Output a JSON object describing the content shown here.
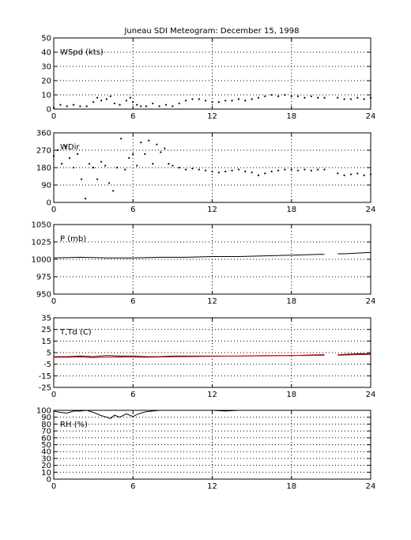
{
  "figure": {
    "title": "Juneau SDI Meteogram:  December 15, 1998"
  },
  "chart_data": [
    {
      "type": "scatter",
      "title": "",
      "xlabel": "",
      "ylabel": "WSpd (kts)",
      "xlim": [
        0,
        24
      ],
      "ylim": [
        0,
        50
      ],
      "xticks": [
        0,
        6,
        12,
        18,
        24
      ],
      "yticks": [
        0,
        10,
        20,
        30,
        40,
        50
      ],
      "grid": true,
      "gaps": [
        [
          20.6,
          21.3
        ]
      ],
      "series": [
        {
          "color": "#000000",
          "x": [
            0,
            0.5,
            1,
            1.5,
            2,
            2.5,
            3,
            3.3,
            3.6,
            4,
            4.3,
            4.6,
            5,
            5.5,
            5.8,
            6,
            6.3,
            6.6,
            7,
            7.5,
            8,
            8.5,
            9,
            9.5,
            10,
            10.5,
            11,
            11.5,
            12,
            12.5,
            13,
            13.5,
            14,
            14.5,
            15,
            15.5,
            16,
            16.5,
            17,
            17.5,
            18,
            18.5,
            19,
            19.5,
            20,
            20.5,
            21.5,
            22,
            22.5,
            23,
            23.5,
            24
          ],
          "y": [
            1,
            3,
            2,
            3,
            2,
            2,
            5,
            8,
            6,
            7,
            9,
            4,
            3,
            6,
            8,
            5,
            3,
            2,
            2,
            4,
            2,
            3,
            2,
            4,
            6,
            7,
            7,
            6,
            5,
            5,
            6,
            6,
            7,
            6,
            7,
            8,
            9,
            10,
            9,
            10,
            9,
            9,
            8,
            9,
            8,
            8,
            8,
            7,
            7,
            8,
            7,
            8
          ]
        }
      ]
    },
    {
      "type": "scatter",
      "title": "",
      "xlabel": "",
      "ylabel": "WDir",
      "xlim": [
        0,
        24
      ],
      "ylim": [
        0,
        360
      ],
      "xticks": [
        0,
        6,
        12,
        18,
        24
      ],
      "yticks": [
        0,
        90,
        180,
        270,
        360
      ],
      "grid": true,
      "gaps": [
        [
          20.6,
          21.3
        ]
      ],
      "series": [
        {
          "color": "#000000",
          "x": [
            0,
            0.3,
            0.6,
            0.9,
            1.2,
            1.5,
            1.8,
            2.1,
            2.4,
            2.7,
            3,
            3.3,
            3.6,
            3.9,
            4.2,
            4.5,
            4.8,
            5.1,
            5.4,
            5.7,
            6,
            6.3,
            6.6,
            6.9,
            7.2,
            7.5,
            7.8,
            8.1,
            8.4,
            8.7,
            9,
            9.5,
            10,
            10.5,
            11,
            11.5,
            12,
            12.5,
            13,
            13.5,
            14,
            14.5,
            15,
            15.5,
            16,
            16.5,
            17,
            17.5,
            18,
            18.5,
            19,
            19.5,
            20,
            20.5,
            21.5,
            22,
            22.5,
            23,
            23.5,
            24
          ],
          "y": [
            240,
            270,
            200,
            290,
            230,
            180,
            250,
            120,
            20,
            200,
            180,
            120,
            210,
            190,
            100,
            60,
            180,
            330,
            170,
            230,
            250,
            190,
            310,
            250,
            320,
            200,
            300,
            260,
            280,
            200,
            190,
            180,
            170,
            175,
            170,
            165,
            160,
            155,
            160,
            165,
            170,
            160,
            155,
            140,
            150,
            160,
            165,
            170,
            170,
            165,
            170,
            165,
            170,
            170,
            150,
            140,
            145,
            150,
            140,
            145
          ]
        }
      ]
    },
    {
      "type": "line",
      "title": "",
      "xlabel": "",
      "ylabel": "P (mb)",
      "xlim": [
        0,
        24
      ],
      "ylim": [
        950,
        1050
      ],
      "xticks": [
        0,
        6,
        12,
        18,
        24
      ],
      "yticks": [
        950,
        975,
        1000,
        1025,
        1050
      ],
      "grid": true,
      "gaps": [
        [
          20.6,
          21.3
        ]
      ],
      "series": [
        {
          "color": "#000000",
          "x": [
            0,
            2,
            4,
            6,
            8,
            10,
            12,
            14,
            16,
            18,
            20,
            20.5,
            21.5,
            22,
            23,
            24
          ],
          "y": [
            1002,
            1003,
            1002,
            1002,
            1003,
            1003,
            1004,
            1004,
            1005,
            1006,
            1007,
            1007,
            1008,
            1008,
            1009,
            1010
          ]
        }
      ]
    },
    {
      "type": "line",
      "title": "",
      "xlabel": "",
      "ylabel": "T,Td (C)",
      "xlim": [
        0,
        24
      ],
      "ylim": [
        -25,
        35
      ],
      "xticks": [
        0,
        6,
        12,
        18,
        24
      ],
      "yticks": [
        -25,
        -15,
        -5,
        5,
        15,
        25,
        35
      ],
      "grid": true,
      "gaps": [
        [
          20.6,
          21.3
        ]
      ],
      "series": [
        {
          "color": "#000000",
          "x": [
            0,
            1,
            2,
            3,
            4,
            5,
            6,
            7,
            8,
            9,
            10,
            12,
            14,
            16,
            18,
            20,
            20.5,
            21.5,
            22,
            23,
            24
          ],
          "y": [
            1.5,
            1.5,
            2,
            1.5,
            2.5,
            2,
            2,
            1.5,
            1.5,
            2,
            2,
            2,
            2,
            2.5,
            2.5,
            3,
            3,
            3,
            3.5,
            4,
            4
          ]
        },
        {
          "color": "#ff0000",
          "x": [
            0,
            1,
            2,
            3,
            4,
            5,
            6,
            7,
            8,
            9,
            10,
            12,
            14,
            16,
            18,
            20,
            20.5,
            21.5,
            22,
            23,
            24
          ],
          "y": [
            1,
            1,
            1.2,
            0.8,
            1,
            1.2,
            1,
            1,
            1.2,
            1.4,
            1.5,
            1.8,
            2,
            2.2,
            2.4,
            2.6,
            2.6,
            2.8,
            2.9,
            3.2,
            3.4
          ]
        }
      ]
    },
    {
      "type": "line",
      "title": "",
      "xlabel": "",
      "ylabel": "RH (%)",
      "xlim": [
        0,
        24
      ],
      "ylim": [
        0,
        100
      ],
      "xticks": [
        0,
        6,
        12,
        18,
        24
      ],
      "yticks": [
        0,
        10,
        20,
        30,
        40,
        50,
        60,
        70,
        80,
        90,
        100
      ],
      "grid": true,
      "gaps": [],
      "series": [
        {
          "color": "#000000",
          "x": [
            0,
            0.5,
            1,
            1.5,
            2,
            2.5,
            3,
            3.5,
            4,
            4.3,
            4.6,
            5,
            5.5,
            6,
            6.3,
            6.6,
            7,
            7.5,
            8,
            9,
            10,
            11,
            12,
            13,
            14,
            15,
            16
          ],
          "y": [
            99,
            97,
            96,
            99,
            99,
            100,
            97,
            93,
            90,
            88,
            93,
            90,
            95,
            91,
            94,
            96,
            98,
            99,
            100,
            100,
            100,
            100,
            100,
            99,
            100,
            100,
            100
          ]
        }
      ]
    }
  ]
}
